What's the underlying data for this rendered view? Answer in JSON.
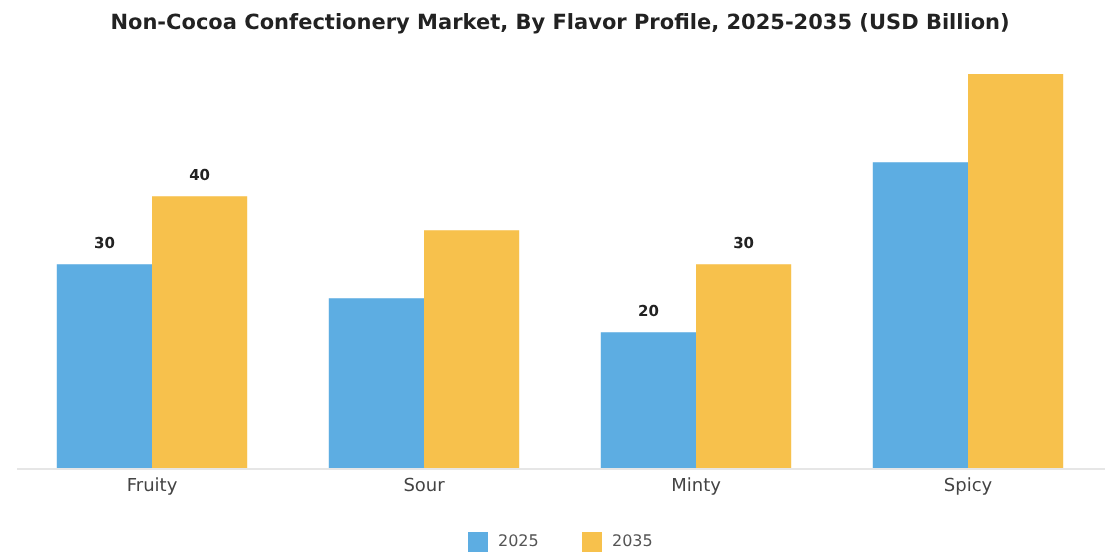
{
  "chart_data": {
    "type": "bar",
    "title": "Non-Cocoa Confectionery Market, By Flavor Profile, 2025-2035 (USD Billion)",
    "categories": [
      "Fruity",
      "Sour",
      "Minty",
      "Spicy"
    ],
    "series": [
      {
        "name": "2025",
        "color": "#5dade2",
        "values": [
          30,
          25,
          20,
          45
        ],
        "value_labels": [
          "30",
          null,
          "20",
          null
        ]
      },
      {
        "name": "2035",
        "color": "#f7c14c",
        "values": [
          40,
          35,
          30,
          58
        ],
        "value_labels": [
          "40",
          null,
          "30",
          null
        ]
      }
    ],
    "legend": "bottom",
    "grid": false
  }
}
